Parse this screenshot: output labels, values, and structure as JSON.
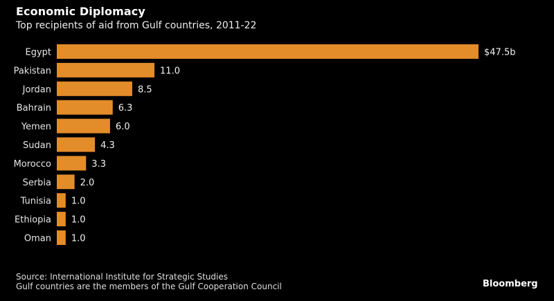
{
  "chart_data": {
    "type": "bar",
    "orientation": "horizontal",
    "title": "Economic Diplomacy",
    "subtitle": "Top recipients of aid from Gulf countries, 2011-22",
    "categories": [
      "Egypt",
      "Pakistan",
      "Jordan",
      "Bahrain",
      "Yemen",
      "Sudan",
      "Morocco",
      "Serbia",
      "Tunisia",
      "Ethiopia",
      "Oman"
    ],
    "values": [
      47.5,
      11.0,
      8.5,
      6.3,
      6.0,
      4.3,
      3.3,
      2.0,
      1.0,
      1.0,
      1.0
    ],
    "value_labels": [
      "$47.5b",
      "11.0",
      "8.5",
      "6.3",
      "6.0",
      "4.3",
      "3.3",
      "2.0",
      "1.0",
      "1.0",
      "1.0"
    ],
    "unit": "billion USD",
    "xlabel": "",
    "ylabel": "",
    "xlim": [
      0,
      47.5
    ],
    "grid": false,
    "bar_color": "#e38c2a"
  },
  "footer": {
    "source": "Source: International Institute for Strategic Studies",
    "note": "Gulf countries are the members of the Gulf Cooperation Council",
    "brand": "Bloomberg"
  }
}
